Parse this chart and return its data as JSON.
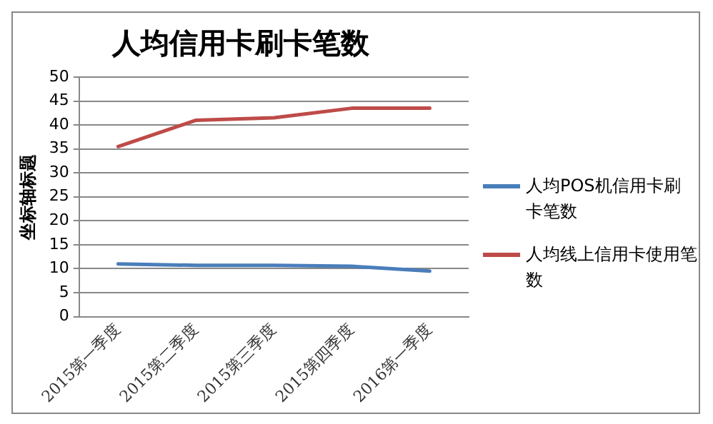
{
  "chart_data": {
    "type": "line",
    "title": "人均信用卡刷卡笔数",
    "ylabel": "坐标轴标题",
    "categories": [
      "2015第一季度",
      "2015第二季度",
      "2015第三季度",
      "2015第四季度",
      "2016第一季度"
    ],
    "series": [
      {
        "name": "人均POS机信用卡刷卡笔数",
        "color": "#4a7ebb",
        "values": [
          11,
          10.7,
          10.7,
          10.5,
          9.5
        ]
      },
      {
        "name": "人均线上信用卡使用笔数",
        "color": "#be4b48",
        "values": [
          35.5,
          41,
          41.5,
          43.5,
          43.5
        ]
      }
    ],
    "ylim": [
      0,
      50
    ],
    "yticks": [
      0,
      5,
      10,
      15,
      20,
      25,
      30,
      35,
      40,
      45,
      50
    ],
    "grid": "y",
    "legend": "right",
    "marker": "none"
  }
}
